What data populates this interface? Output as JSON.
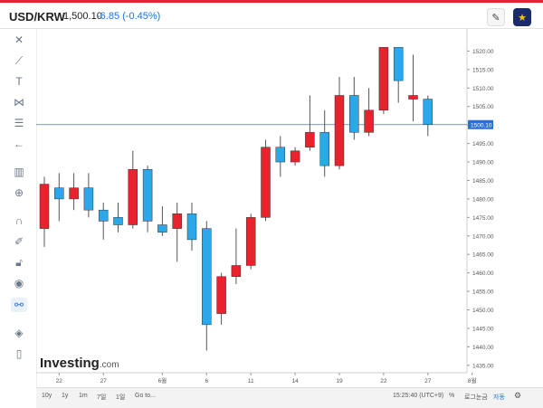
{
  "header": {
    "symbol": "USD/KRW",
    "price": "1,500.10",
    "change": "-6.85",
    "change_pct": "(-0.45%)",
    "change_color": "#1a73e8"
  },
  "toolbar_icons": [
    "crosshair-icon",
    "trend-line-icon",
    "text-icon",
    "pattern-icon",
    "fib-icon",
    "back-arrow-icon",
    "measure-icon",
    "zoom-in-icon",
    "magnet-icon",
    "lock-draw-icon",
    "lock-icon",
    "eye-icon",
    "link-icon",
    "layers-icon",
    "trash-icon"
  ],
  "chart_data": {
    "type": "candlestick",
    "up_color": "#e8232e",
    "down_color": "#2aa8ea",
    "current_price_label": "1500.10",
    "ylim": [
      1433,
      1525
    ],
    "y_ticks": [
      "1520.00",
      "1515.00",
      "1510.00",
      "1505.00",
      "1500.00",
      "1495.00",
      "1490.00",
      "1485.00",
      "1480.00",
      "1475.00",
      "1470.00",
      "1465.00",
      "1460.00",
      "1455.00",
      "1450.00",
      "1445.00",
      "1440.00",
      "1435.00"
    ],
    "x_ticks": [
      {
        "label": "22",
        "i": 1
      },
      {
        "label": "27",
        "i": 4
      },
      {
        "label": "6월",
        "i": 8
      },
      {
        "label": "6",
        "i": 11
      },
      {
        "label": "11",
        "i": 14
      },
      {
        "label": "14",
        "i": 17
      },
      {
        "label": "19",
        "i": 20
      },
      {
        "label": "22",
        "i": 23
      },
      {
        "label": "27",
        "i": 26
      },
      {
        "label": "8월",
        "i": 29
      }
    ],
    "watermark": "Investing",
    "watermark_suffix": ".com",
    "candles": [
      {
        "o": 1472,
        "h": 1486,
        "l": 1467,
        "c": 1484
      },
      {
        "o": 1483,
        "h": 1487,
        "l": 1474,
        "c": 1480
      },
      {
        "o": 1480,
        "h": 1487,
        "l": 1477,
        "c": 1483
      },
      {
        "o": 1483,
        "h": 1487,
        "l": 1475,
        "c": 1477
      },
      {
        "o": 1477,
        "h": 1479,
        "l": 1469,
        "c": 1474
      },
      {
        "o": 1475,
        "h": 1479,
        "l": 1471,
        "c": 1473
      },
      {
        "o": 1473,
        "h": 1493,
        "l": 1472,
        "c": 1488
      },
      {
        "o": 1488,
        "h": 1489,
        "l": 1471,
        "c": 1474
      },
      {
        "o": 1473,
        "h": 1478,
        "l": 1470,
        "c": 1471
      },
      {
        "o": 1472,
        "h": 1479,
        "l": 1463,
        "c": 1476
      },
      {
        "o": 1476,
        "h": 1479,
        "l": 1466,
        "c": 1469
      },
      {
        "o": 1472,
        "h": 1474,
        "l": 1439,
        "c": 1446
      },
      {
        "o": 1449,
        "h": 1460,
        "l": 1446,
        "c": 1459
      },
      {
        "o": 1459,
        "h": 1472,
        "l": 1457,
        "c": 1462
      },
      {
        "o": 1462,
        "h": 1476,
        "l": 1461,
        "c": 1475
      },
      {
        "o": 1475,
        "h": 1496,
        "l": 1474,
        "c": 1494
      },
      {
        "o": 1494,
        "h": 1497,
        "l": 1486,
        "c": 1490
      },
      {
        "o": 1490,
        "h": 1494,
        "l": 1489,
        "c": 1493
      },
      {
        "o": 1494,
        "h": 1508,
        "l": 1493,
        "c": 1498
      },
      {
        "o": 1498,
        "h": 1504,
        "l": 1486,
        "c": 1489
      },
      {
        "o": 1489,
        "h": 1513,
        "l": 1488,
        "c": 1508
      },
      {
        "o": 1508,
        "h": 1513,
        "l": 1496,
        "c": 1498
      },
      {
        "o": 1498,
        "h": 1510,
        "l": 1497,
        "c": 1504
      },
      {
        "o": 1504,
        "h": 1521,
        "l": 1503,
        "c": 1521
      },
      {
        "o": 1521,
        "h": 1521,
        "l": 1506,
        "c": 1512
      },
      {
        "o": 1507,
        "h": 1519,
        "l": 1501,
        "c": 1508
      },
      {
        "o": 1507,
        "h": 1508,
        "l": 1497,
        "c": 1500.1
      }
    ]
  },
  "bottom_bar": {
    "periods": [
      "10y",
      "1y",
      "1m",
      "7일",
      "1일"
    ],
    "goto": "Go to...",
    "time": "15:25:40 (UTC+9)",
    "percent": "%",
    "log": "로그눈금",
    "auto": "자동",
    "settings_icon": "gear-icon"
  }
}
